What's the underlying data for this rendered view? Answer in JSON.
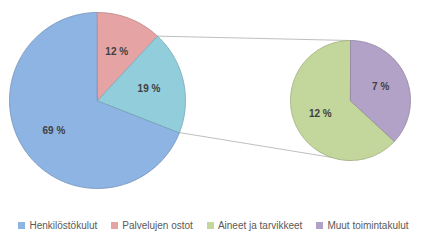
{
  "chart_data": [
    {
      "type": "pie",
      "categories": [
        "Henkilöstökulut",
        "Palvelujen ostot",
        null
      ],
      "values": [
        69,
        12,
        19
      ],
      "value_labels": [
        "69 %",
        "12 %",
        "19 %"
      ],
      "data_labels": true,
      "colors": [
        "#8eb4e3",
        "#e6a3a3",
        "#92cddc"
      ],
      "legend": "bottom"
    },
    {
      "type": "pie",
      "categories": [
        "Aineet ja tarvikkeet",
        "Muut toimintakulut"
      ],
      "values": [
        12,
        7
      ],
      "value_labels": [
        "12 %",
        "7 %"
      ],
      "data_labels": true,
      "colors": [
        "#c3d69b",
        "#b3a2c7"
      ],
      "legend": "bottom"
    }
  ]
}
